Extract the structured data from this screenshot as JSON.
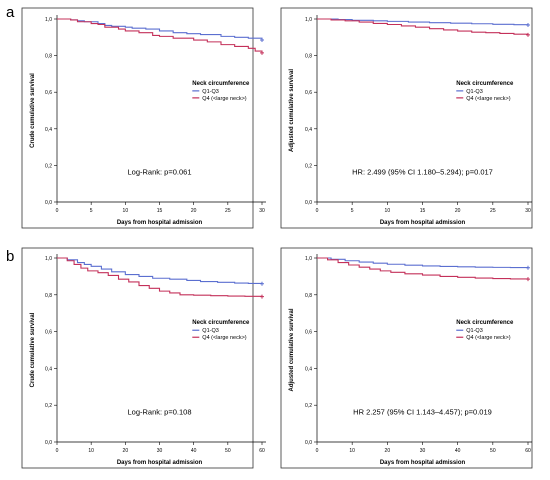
{
  "panel_labels": [
    "a",
    "b"
  ],
  "colors": {
    "q1_q3": "#5b6fd0",
    "q4": "#c4305a",
    "frame": "#333333"
  },
  "chart_data": [
    {
      "type": "line",
      "step": true,
      "ylabel": "Crude cumulative survival",
      "xlabel": "Days from hospital admission",
      "xlim": [
        0,
        30
      ],
      "ylim": [
        0,
        1
      ],
      "xticks": [
        0,
        5,
        10,
        15,
        20,
        25,
        30
      ],
      "yticks": [
        0.0,
        0.2,
        0.4,
        0.6,
        0.8,
        1.0
      ],
      "ytick_labels": [
        "0,0",
        "0,2",
        "0,4",
        "0,6",
        "0,8",
        "1,0"
      ],
      "grid": false,
      "legend": {
        "title": "Neck circumference",
        "placement": "right-middle"
      },
      "annotation": "Log-Rank: p=0.061",
      "series": [
        {
          "name": "Q1-Q3",
          "color": "#5b6fd0",
          "x": [
            0,
            2,
            3,
            4,
            6,
            7,
            8,
            10,
            11,
            13,
            15,
            17,
            19,
            21,
            24,
            26,
            28,
            30
          ],
          "y": [
            1.0,
            0.995,
            0.99,
            0.985,
            0.975,
            0.965,
            0.96,
            0.955,
            0.95,
            0.945,
            0.935,
            0.925,
            0.92,
            0.915,
            0.905,
            0.9,
            0.895,
            0.885
          ]
        },
        {
          "name": "Q4 (<large neck>)",
          "color": "#c4305a",
          "x": [
            0,
            2,
            3,
            5,
            6,
            7,
            9,
            10,
            12,
            14,
            15,
            17,
            20,
            22,
            24,
            26,
            28,
            29,
            30
          ],
          "y": [
            1.0,
            0.995,
            0.985,
            0.975,
            0.97,
            0.955,
            0.945,
            0.935,
            0.925,
            0.91,
            0.905,
            0.895,
            0.885,
            0.875,
            0.86,
            0.85,
            0.84,
            0.825,
            0.815
          ]
        }
      ]
    },
    {
      "type": "line",
      "step": true,
      "ylabel": "Adjusted cumulative survival",
      "xlabel": "Days from hospital admission",
      "xlim": [
        0,
        30
      ],
      "ylim": [
        0,
        1
      ],
      "xticks": [
        0,
        5,
        10,
        15,
        20,
        25,
        30
      ],
      "yticks": [
        0.0,
        0.2,
        0.4,
        0.6,
        0.8,
        1.0
      ],
      "ytick_labels": [
        "0,0",
        "0,2",
        "0,4",
        "0,6",
        "0,8",
        "1,0"
      ],
      "grid": false,
      "legend": {
        "title": "Neck circumference",
        "placement": "right-middle"
      },
      "annotation": "HR: 2.499 (95% CI 1.180–5.294); p=0.017",
      "series": [
        {
          "name": "Q1-Q3",
          "color": "#5b6fd0",
          "x": [
            0,
            3,
            5,
            8,
            10,
            13,
            16,
            19,
            22,
            25,
            28,
            30
          ],
          "y": [
            1.0,
            0.997,
            0.993,
            0.99,
            0.987,
            0.983,
            0.98,
            0.977,
            0.974,
            0.971,
            0.969,
            0.967
          ]
        },
        {
          "name": "Q4 (<large neck>)",
          "color": "#c4305a",
          "x": [
            0,
            2,
            4,
            6,
            8,
            10,
            12,
            14,
            16,
            18,
            20,
            22,
            24,
            26,
            28,
            30
          ],
          "y": [
            1.0,
            0.995,
            0.99,
            0.983,
            0.976,
            0.97,
            0.962,
            0.955,
            0.947,
            0.94,
            0.934,
            0.928,
            0.925,
            0.921,
            0.917,
            0.913
          ]
        }
      ]
    },
    {
      "type": "line",
      "step": true,
      "ylabel": "Crude cumulative survival",
      "xlabel": "Days from hospital admission",
      "xlim": [
        0,
        60
      ],
      "ylim": [
        0,
        1
      ],
      "xticks": [
        0,
        10,
        20,
        30,
        40,
        50,
        60
      ],
      "yticks": [
        0.0,
        0.2,
        0.4,
        0.6,
        0.8,
        1.0
      ],
      "ytick_labels": [
        "0,0",
        "0,2",
        "0,4",
        "0,6",
        "0,8",
        "1,0"
      ],
      "grid": false,
      "legend": {
        "title": "Neck circumference",
        "placement": "right-middle"
      },
      "annotation": "Log-Rank: p=0.108",
      "series": [
        {
          "name": "Q1-Q3",
          "color": "#5b6fd0",
          "x": [
            0,
            3,
            6,
            8,
            10,
            13,
            16,
            20,
            24,
            28,
            33,
            38,
            42,
            47,
            52,
            56,
            60
          ],
          "y": [
            1.0,
            0.99,
            0.975,
            0.965,
            0.955,
            0.94,
            0.925,
            0.91,
            0.9,
            0.89,
            0.885,
            0.878,
            0.872,
            0.868,
            0.864,
            0.862,
            0.86
          ]
        },
        {
          "name": "Q4 (<large neck>)",
          "color": "#c4305a",
          "x": [
            0,
            3,
            5,
            7,
            9,
            12,
            15,
            18,
            21,
            24,
            27,
            30,
            33,
            36,
            40,
            45,
            50,
            55,
            60
          ],
          "y": [
            1.0,
            0.985,
            0.965,
            0.945,
            0.93,
            0.92,
            0.905,
            0.885,
            0.87,
            0.85,
            0.835,
            0.82,
            0.81,
            0.8,
            0.798,
            0.795,
            0.793,
            0.792,
            0.79
          ]
        }
      ]
    },
    {
      "type": "line",
      "step": true,
      "ylabel": "Adjusted cumulative survival",
      "xlabel": "Days from hospital admission",
      "xlim": [
        0,
        60
      ],
      "ylim": [
        0,
        1
      ],
      "xticks": [
        0,
        10,
        20,
        30,
        40,
        50,
        60
      ],
      "yticks": [
        0.0,
        0.2,
        0.4,
        0.6,
        0.8,
        1.0
      ],
      "ytick_labels": [
        "0,0",
        "0,2",
        "0,4",
        "0,6",
        "0,8",
        "1,0"
      ],
      "grid": false,
      "legend": {
        "title": "Neck circumference",
        "placement": "right-middle"
      },
      "annotation": "HR 2.257 (95% CI 1.143–4.457); p=0.019",
      "series": [
        {
          "name": "Q1-Q3",
          "color": "#5b6fd0",
          "x": [
            0,
            4,
            8,
            12,
            16,
            20,
            25,
            30,
            35,
            40,
            45,
            50,
            55,
            60
          ],
          "y": [
            1.0,
            0.993,
            0.985,
            0.978,
            0.972,
            0.966,
            0.961,
            0.957,
            0.954,
            0.952,
            0.95,
            0.949,
            0.948,
            0.947
          ]
        },
        {
          "name": "Q4 (<large neck>)",
          "color": "#c4305a",
          "x": [
            0,
            3,
            6,
            9,
            12,
            15,
            18,
            21,
            25,
            30,
            35,
            40,
            45,
            50,
            55,
            60
          ],
          "y": [
            1.0,
            0.99,
            0.975,
            0.962,
            0.95,
            0.94,
            0.93,
            0.922,
            0.914,
            0.907,
            0.9,
            0.895,
            0.891,
            0.888,
            0.886,
            0.885
          ]
        }
      ]
    }
  ]
}
